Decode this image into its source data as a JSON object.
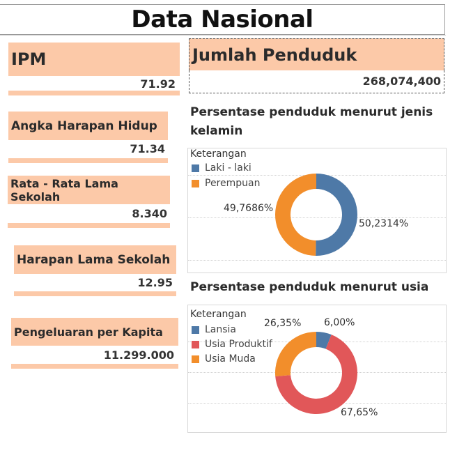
{
  "page_title": "Data Nasional",
  "kpis": [
    {
      "label": "IPM",
      "value": "71.92"
    },
    {
      "label": "Angka Harapan Hidup",
      "value": "71.34"
    },
    {
      "label": "Rata - Rata Lama Sekolah",
      "value": "8.340"
    },
    {
      "label": "Harapan Lama Sekolah",
      "value": "12.95"
    },
    {
      "label": "Pengeluaran per Kapita",
      "value": "11.299.000"
    }
  ],
  "population": {
    "label": "Jumlah Penduduk",
    "value": "268,074,400"
  },
  "gender_section_title": "Persentase penduduk menurut jenis kelamin",
  "age_section_title": "Persentase penduduk menurut usia",
  "chart_data": [
    {
      "type": "pie",
      "title": "Persentase penduduk menurut jenis kelamin",
      "legend_title": "Keterangan",
      "legend_position": "top-left",
      "categories": [
        "Laki - laki",
        "Perempuan"
      ],
      "values": [
        50.2314,
        49.7686
      ],
      "labels": [
        "50,2314%",
        "49,7686%"
      ],
      "colors": [
        "#4e79a7",
        "#f28e2b"
      ]
    },
    {
      "type": "pie",
      "title": "Persentase penduduk menurut usia",
      "legend_title": "Keterangan",
      "legend_position": "top-left",
      "categories": [
        "Lansia",
        "Usia Produktif",
        "Usia Muda"
      ],
      "values": [
        6.0,
        67.65,
        26.35
      ],
      "labels": [
        "6,00%",
        "67,65%",
        "26,35%"
      ],
      "colors": [
        "#4e79a7",
        "#e15759",
        "#f28e2b"
      ]
    }
  ]
}
